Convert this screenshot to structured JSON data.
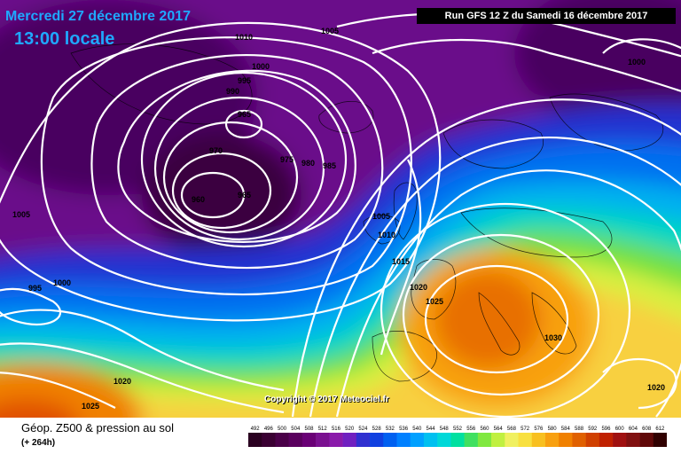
{
  "header": {
    "date": "Mercredi 27 décembre 2017",
    "time": "13:00 locale",
    "run": "Run GFS 12 Z du Samedi 16 décembre 2017"
  },
  "copyright": "Copyright © 2017 Meteociel.fr",
  "footer": {
    "title": "Géop. Z500 & pression au sol",
    "lead": "(+ 264h)"
  },
  "scale": {
    "values": [
      "492",
      "496",
      "500",
      "504",
      "508",
      "512",
      "516",
      "520",
      "524",
      "528",
      "532",
      "536",
      "540",
      "544",
      "548",
      "552",
      "556",
      "560",
      "564",
      "568",
      "572",
      "576",
      "580",
      "584",
      "588",
      "592",
      "596",
      "600",
      "604",
      "608",
      "612"
    ],
    "colors": [
      "#2a0020",
      "#3a0032",
      "#4a0048",
      "#5a005e",
      "#6a0076",
      "#7a1090",
      "#8a1aaa",
      "#7020c0",
      "#3030d0",
      "#1040e0",
      "#0060f0",
      "#0080ff",
      "#00a0ff",
      "#00c0f0",
      "#00d8d8",
      "#00e0a0",
      "#40e060",
      "#80e840",
      "#c0f040",
      "#f0f060",
      "#f8e040",
      "#f8c020",
      "#f8a010",
      "#f08000",
      "#e06000",
      "#d04000",
      "#c02000",
      "#a01010",
      "#801010",
      "#600808",
      "#300000"
    ]
  },
  "isobars": [
    {
      "label": "1010"
    },
    {
      "label": "1005"
    },
    {
      "label": "1000"
    },
    {
      "label": "995"
    },
    {
      "label": "990"
    },
    {
      "label": "965"
    },
    {
      "label": "970"
    },
    {
      "label": "960"
    },
    {
      "label": "965"
    },
    {
      "label": "975"
    },
    {
      "label": "980"
    },
    {
      "label": "985"
    },
    {
      "label": "1000"
    },
    {
      "label": "1005"
    },
    {
      "label": "995"
    },
    {
      "label": "1000"
    },
    {
      "label": "1005"
    },
    {
      "label": "1010"
    },
    {
      "label": "1015"
    },
    {
      "label": "1020"
    },
    {
      "label": "1025"
    },
    {
      "label": "1030"
    },
    {
      "label": "1020"
    },
    {
      "label": "1025"
    },
    {
      "label": "1020"
    }
  ]
}
